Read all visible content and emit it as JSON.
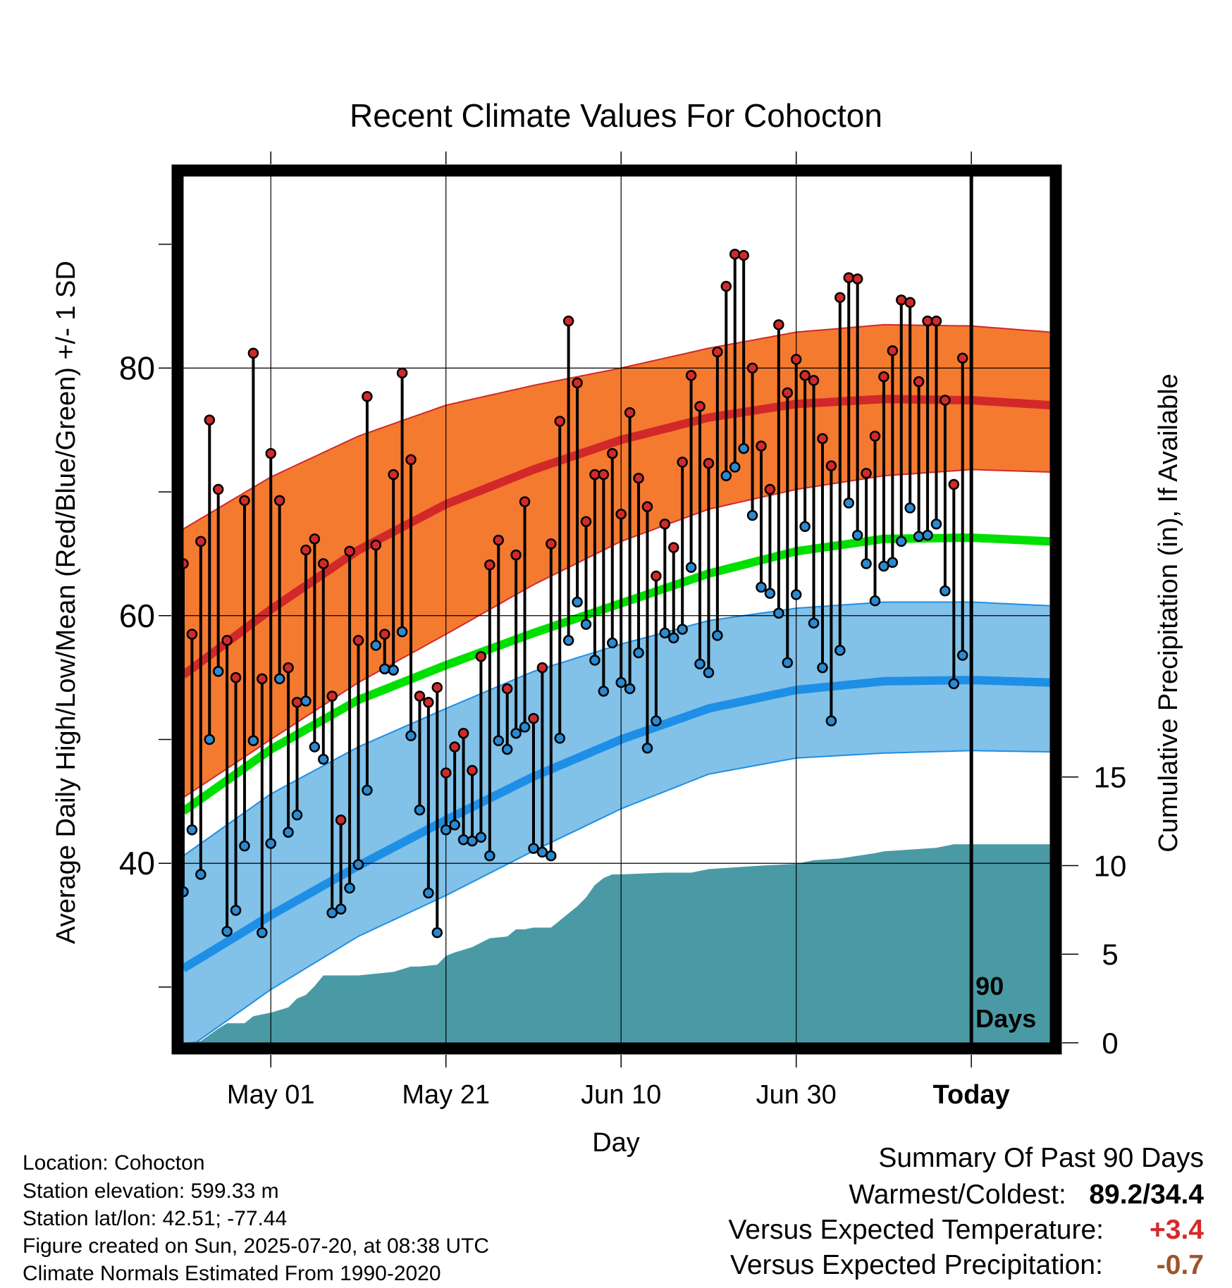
{
  "chart_data": {
    "type": "line",
    "title": "Recent Climate Values For Cohocton",
    "xlabel": "Day",
    "ylabel": "Average Daily High/Low/Mean (Red/Blue/Green) +/- 1 SD",
    "y2label": "Cumulative Precipitation (in), If Available",
    "ylim": [
      25.5,
      95.5
    ],
    "y2lim": [
      0,
      48.9
    ],
    "xlim": [
      0,
      99
    ],
    "x_ticks": [
      {
        "x": 10,
        "label": "May 01"
      },
      {
        "x": 30,
        "label": "May 21"
      },
      {
        "x": 50,
        "label": "Jun 10"
      },
      {
        "x": 70,
        "label": "Jun 30"
      },
      {
        "x": 90,
        "label": "Today"
      }
    ],
    "y_ticks": [
      40,
      60,
      80
    ],
    "y2_ticks": [
      0,
      5,
      10,
      15
    ],
    "today_label": "90 Days",
    "colors": {
      "high_band": "#f47a30",
      "high_line": "#d2282a",
      "low_band": "#82c1e8",
      "low_line": "#1e8fe6",
      "mean_line": "#00e000",
      "precip": "#4a9aa5",
      "high_marker": "#d22a2a",
      "low_marker": "#2a8ad2"
    },
    "normals": {
      "x": [
        0,
        10,
        20,
        30,
        40,
        50,
        60,
        70,
        80,
        90,
        99
      ],
      "high_mean": [
        55.2,
        60.5,
        65.3,
        69.0,
        71.8,
        74.2,
        76.0,
        77.1,
        77.5,
        77.4,
        77.0
      ],
      "high_upper": [
        67.0,
        71.2,
        74.5,
        77.0,
        78.6,
        80.0,
        81.6,
        82.9,
        83.5,
        83.4,
        82.9
      ],
      "high_lower": [
        45.3,
        50.0,
        54.6,
        58.5,
        62.5,
        66.0,
        68.6,
        70.2,
        71.3,
        71.8,
        71.6
      ],
      "mean": [
        44.2,
        49.2,
        53.2,
        56.0,
        58.6,
        61.0,
        63.4,
        65.2,
        66.2,
        66.3,
        66.0
      ],
      "low_mean": [
        31.5,
        35.8,
        39.8,
        43.5,
        47.0,
        50.0,
        52.5,
        54.0,
        54.7,
        54.8,
        54.6
      ],
      "low_upper": [
        40.6,
        45.6,
        49.4,
        52.5,
        55.5,
        57.7,
        59.6,
        60.6,
        61.1,
        61.1,
        60.8
      ],
      "low_lower": [
        24.8,
        29.8,
        34.1,
        37.4,
        41.0,
        44.4,
        47.2,
        48.5,
        48.9,
        49.1,
        49.0
      ]
    },
    "daily": {
      "high": [
        64.2,
        58.5,
        66.0,
        75.8,
        70.2,
        58.0,
        55.0,
        69.3,
        81.2,
        54.9,
        73.1,
        69.3,
        55.8,
        53.0,
        65.3,
        66.2,
        64.2,
        53.5,
        43.5,
        65.2,
        58.0,
        77.7,
        65.7,
        58.5,
        71.4,
        79.6,
        72.6,
        53.5,
        53.0,
        54.2,
        47.3,
        49.4,
        50.5,
        47.5,
        56.7,
        64.1,
        66.1,
        54.1,
        64.9,
        69.2,
        51.7,
        55.8,
        65.8,
        75.7,
        83.8,
        78.8,
        67.6,
        71.4,
        71.4,
        73.1,
        68.2,
        76.4,
        71.1,
        68.8,
        63.2,
        67.4,
        65.5,
        72.4,
        79.4,
        76.9,
        72.3,
        81.3,
        86.6,
        89.2,
        89.1,
        80.0,
        73.7,
        70.2,
        83.5,
        78.0,
        80.7,
        79.4,
        79.0,
        74.3,
        72.1,
        85.7,
        87.3,
        87.2,
        71.5,
        74.5,
        79.3,
        81.4,
        85.5,
        85.3,
        78.9,
        83.8,
        83.8,
        77.4,
        70.6,
        80.8
      ],
      "low": [
        37.7,
        42.7,
        39.1,
        50.0,
        55.5,
        34.5,
        36.2,
        41.4,
        49.9,
        34.4,
        41.6,
        54.9,
        42.5,
        43.9,
        53.1,
        49.4,
        48.4,
        36.0,
        36.3,
        38.0,
        39.9,
        45.9,
        57.6,
        55.7,
        55.6,
        58.7,
        50.3,
        44.3,
        37.6,
        34.4,
        42.7,
        43.1,
        41.9,
        41.8,
        42.1,
        40.6,
        49.9,
        49.2,
        50.5,
        51.0,
        41.2,
        40.9,
        40.6,
        50.1,
        58.0,
        61.1,
        59.3,
        56.4,
        53.9,
        57.8,
        54.6,
        54.1,
        57.0,
        49.3,
        51.5,
        58.6,
        58.2,
        58.9,
        63.9,
        56.1,
        55.4,
        58.4,
        71.3,
        72.0,
        73.5,
        68.1,
        62.3,
        61.8,
        60.2,
        56.2,
        61.7,
        67.2,
        59.4,
        55.8,
        51.5,
        57.2,
        69.1,
        66.5,
        64.2,
        61.2,
        64.0,
        64.3,
        66.0,
        68.7,
        66.4,
        66.5,
        67.4,
        62.0,
        54.5,
        56.8
      ]
    },
    "precipitation": {
      "x": [
        0,
        2,
        4,
        5,
        7,
        8,
        10,
        12,
        13,
        14,
        15,
        16,
        18,
        20,
        22,
        24,
        26,
        27,
        29,
        30,
        31,
        33,
        35,
        37,
        38,
        39,
        40,
        42,
        44,
        45,
        46,
        47,
        48,
        49,
        50,
        55,
        58,
        60,
        63,
        66,
        70,
        72,
        75,
        79,
        80,
        83,
        86,
        88,
        99
      ],
      "cumulative": [
        0.0,
        0.1,
        0.8,
        1.1,
        1.1,
        1.5,
        1.7,
        2.0,
        2.5,
        2.7,
        3.2,
        3.8,
        3.8,
        3.8,
        3.9,
        4.0,
        4.3,
        4.3,
        4.4,
        4.9,
        5.1,
        5.4,
        5.9,
        6.0,
        6.4,
        6.4,
        6.5,
        6.5,
        7.3,
        7.7,
        8.2,
        8.9,
        9.3,
        9.5,
        9.5,
        9.6,
        9.6,
        9.8,
        9.9,
        10.0,
        10.1,
        10.3,
        10.4,
        10.7,
        10.8,
        10.9,
        11.0,
        11.2,
        11.2
      ]
    }
  },
  "info": {
    "location": "Location: Cohocton",
    "elevation": "Station elevation: 599.33 m",
    "latlon": "Station lat/lon: 42.51; -77.44",
    "created": "Figure created on Sun, 2025-07-20, at 08:38 UTC",
    "normals_period": "Climate Normals Estimated From 1990-2020"
  },
  "summary": {
    "heading": "Summary Of Past 90 Days",
    "warmest_label": "Warmest/Coldest:",
    "warmest_value": "89.2/34.4",
    "temp_label": "Versus Expected Temperature:",
    "temp_value": "+3.4",
    "temp_color": "#d42a2a",
    "precip_label": "Versus Expected Precipitation:",
    "precip_value": "-0.7",
    "precip_color": "#a0522d"
  }
}
